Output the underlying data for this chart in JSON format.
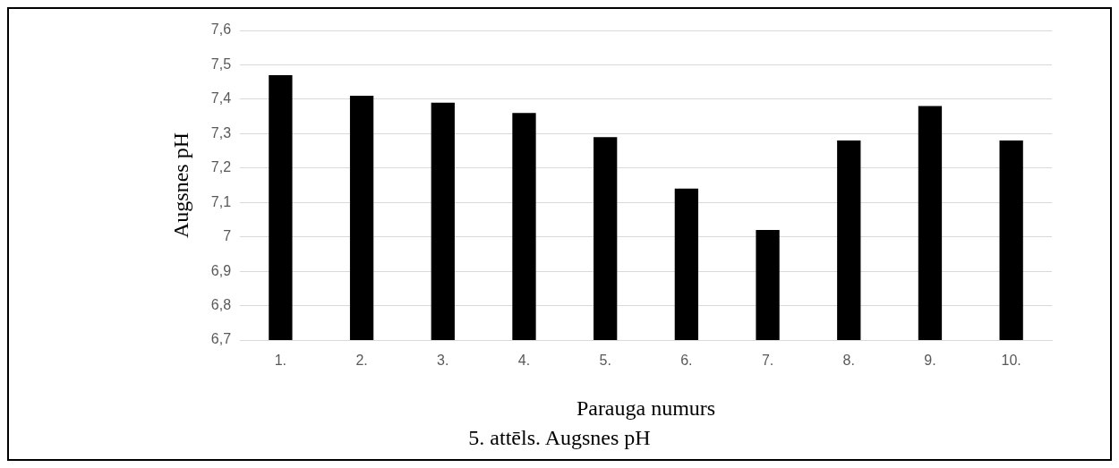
{
  "chart_data": {
    "type": "bar",
    "xlabel": "Parauga numurs",
    "ylabel": "Augsnes pH",
    "categories": [
      "1.",
      "2.",
      "3.",
      "4.",
      "5.",
      "6.",
      "7.",
      "8.",
      "9.",
      "10."
    ],
    "values": [
      7.47,
      7.41,
      7.39,
      7.36,
      7.29,
      7.14,
      7.02,
      7.28,
      7.38,
      7.28
    ],
    "color": "#000000",
    "ylim": [
      6.7,
      7.6
    ],
    "yticks": [
      {
        "value": 6.7,
        "label": "6,7"
      },
      {
        "value": 6.8,
        "label": "6,8"
      },
      {
        "value": 6.9,
        "label": "6,9"
      },
      {
        "value": 7,
        "label": "7"
      },
      {
        "value": 7.1,
        "label": "7,1"
      },
      {
        "value": 7.2,
        "label": "7,2"
      },
      {
        "value": 7.3,
        "label": "7,3"
      },
      {
        "value": 7.4,
        "label": "7,4"
      },
      {
        "value": 7.5,
        "label": "7,5"
      },
      {
        "value": 7.6,
        "label": "7,6"
      }
    ],
    "grid": "y",
    "legend": false,
    "annotations": [
      "5. attēls. Augsnes pH"
    ]
  }
}
